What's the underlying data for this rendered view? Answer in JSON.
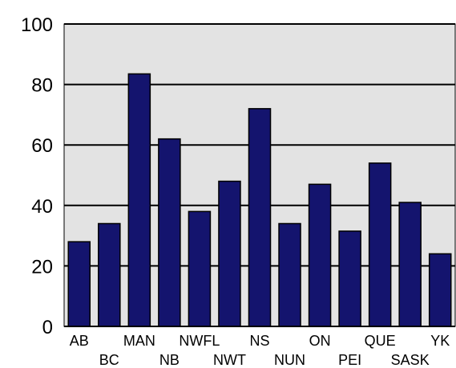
{
  "chart_data": {
    "type": "bar",
    "categories": [
      "AB",
      "BC",
      "MAN",
      "NB",
      "NWFL",
      "NWT",
      "NS",
      "NUN",
      "ON",
      "PEI",
      "QUE",
      "SASK",
      "YK"
    ],
    "values": [
      28,
      34,
      83.5,
      62,
      38,
      48,
      72,
      34,
      47,
      31.5,
      54,
      41,
      24
    ],
    "ylim": [
      0,
      100
    ],
    "yticks": [
      "0",
      "20",
      "40",
      "60",
      "80",
      "100"
    ],
    "grid": true,
    "colors": {
      "bar": "#14146e",
      "plot_background": "#e3e3e3",
      "grid": "#000000"
    }
  }
}
